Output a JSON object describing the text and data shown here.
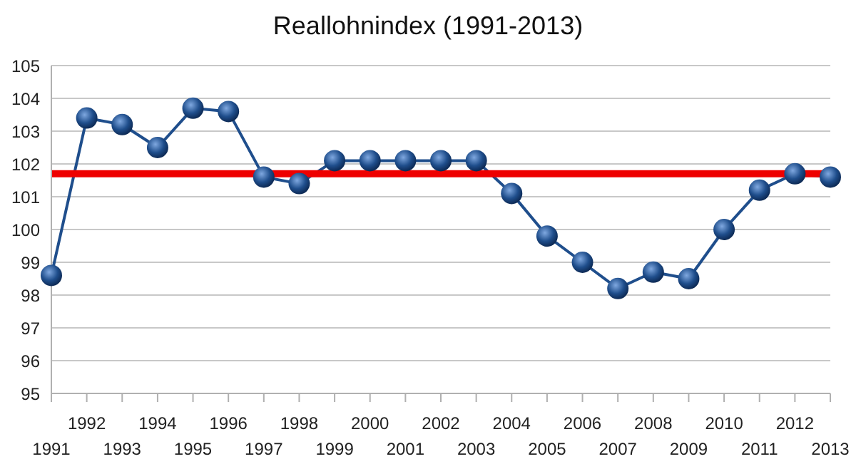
{
  "chart_data": {
    "type": "line",
    "title": "Reallohnindex (1991-2013)",
    "categories": [
      "1991",
      "1992",
      "1993",
      "1994",
      "1995",
      "1996",
      "1997",
      "1998",
      "1999",
      "2000",
      "2001",
      "2002",
      "2003",
      "2004",
      "2005",
      "2006",
      "2007",
      "2008",
      "2009",
      "2010",
      "2011",
      "2012",
      "2013"
    ],
    "series": [
      {
        "color": "#1f4e8c",
        "values": [
          98.6,
          103.4,
          103.2,
          102.5,
          103.7,
          103.6,
          101.6,
          101.4,
          102.1,
          102.1,
          102.1,
          102.1,
          102.1,
          101.1,
          99.8,
          99.0,
          98.2,
          98.7,
          98.5,
          100.0,
          101.2,
          101.7,
          101.6
        ]
      }
    ],
    "ylim": [
      95,
      105
    ],
    "yticks": [
      95,
      96,
      97,
      98,
      99,
      100,
      101,
      102,
      103,
      104,
      105
    ],
    "grid": "y",
    "marker": "circle",
    "line_style": "solid",
    "ref_lines": [
      {
        "axis": "y",
        "value": 101.7,
        "color": "#ee0000"
      }
    ]
  }
}
